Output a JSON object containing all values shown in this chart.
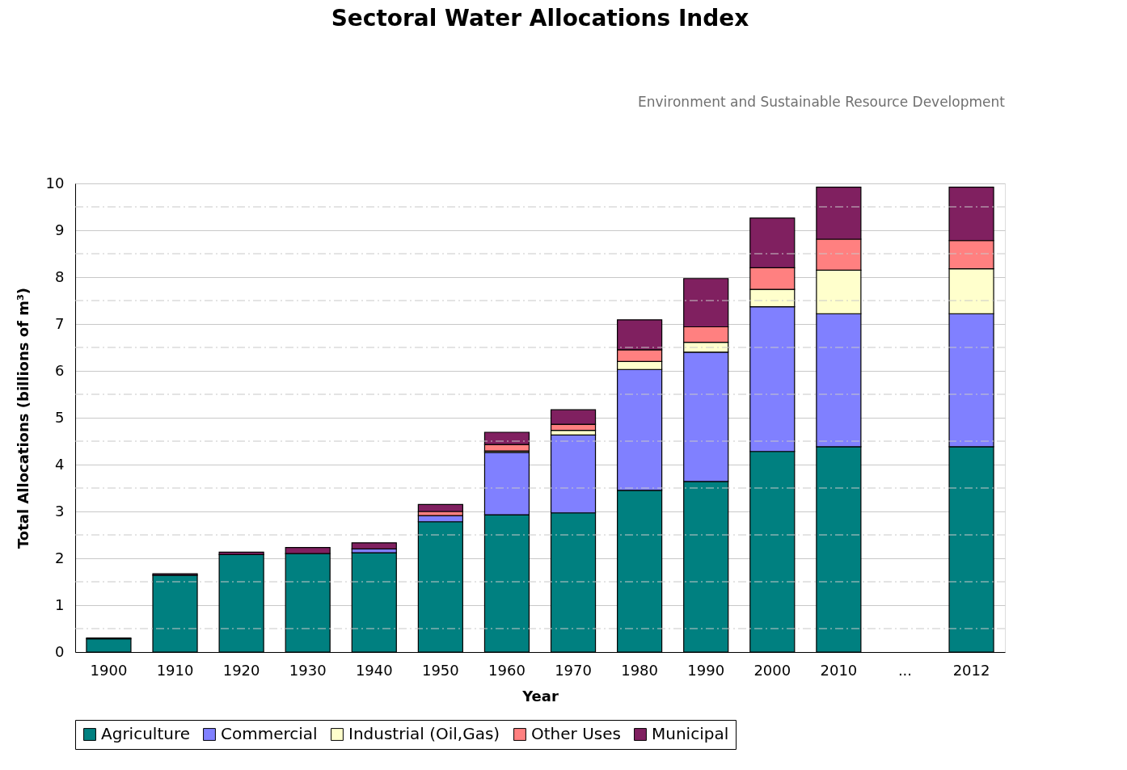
{
  "chart_data": {
    "type": "bar",
    "title": "Sectoral Water Allocations Index",
    "xlabel": "Year",
    "ylabel": "Total Allocations (billions of m³)",
    "annotations": [
      "Environment and Sustainable Resource Development"
    ],
    "categories": [
      "1900",
      "1910",
      "1920",
      "1930",
      "1940",
      "1950",
      "1960",
      "1970",
      "1980",
      "1990",
      "2000",
      "2010",
      "...",
      "2012"
    ],
    "stacked": true,
    "series": [
      {
        "name": "Agriculture",
        "color": "#008080",
        "values": [
          0.28,
          1.64,
          2.08,
          2.1,
          2.12,
          2.78,
          2.93,
          2.97,
          3.45,
          3.64,
          4.28,
          4.38,
          null,
          4.38
        ]
      },
      {
        "name": "Commercial",
        "color": "#8080ff",
        "values": [
          null,
          null,
          null,
          null,
          0.08,
          0.13,
          1.33,
          1.66,
          2.58,
          2.76,
          3.09,
          2.84,
          null,
          2.84
        ]
      },
      {
        "name": "Industrial (Oil,Gas)",
        "color": "#ffffcc",
        "values": [
          null,
          null,
          null,
          null,
          null,
          null,
          0.03,
          0.1,
          0.17,
          0.21,
          0.37,
          0.93,
          null,
          0.96
        ]
      },
      {
        "name": "Other Uses",
        "color": "#ff8080",
        "values": [
          null,
          null,
          null,
          null,
          null,
          0.09,
          0.14,
          0.13,
          0.25,
          0.33,
          0.46,
          0.66,
          null,
          0.6
        ]
      },
      {
        "name": "Municipal",
        "color": "#802060",
        "values": [
          0.02,
          0.03,
          0.05,
          0.13,
          0.13,
          0.15,
          0.26,
          0.31,
          0.64,
          1.03,
          1.06,
          1.11,
          null,
          1.14
        ]
      }
    ],
    "ylim": [
      0,
      10
    ],
    "yticks": [
      0,
      {
        "value": 0.5,
        "label": null
      },
      1,
      {
        "value": 1.5,
        "label": null
      },
      2,
      {
        "value": 2.5,
        "label": null
      },
      3,
      {
        "value": 3.5,
        "label": null
      },
      4,
      {
        "value": 4.5,
        "label": null
      },
      5,
      {
        "value": 5.5,
        "label": null
      },
      6,
      {
        "value": 6.5,
        "label": null
      },
      7,
      {
        "value": 7.5,
        "label": null
      },
      8,
      {
        "value": 8.5,
        "label": null
      },
      9,
      {
        "value": 9.5,
        "label": null
      },
      10
    ],
    "grid": "y",
    "legend": "bottom"
  }
}
